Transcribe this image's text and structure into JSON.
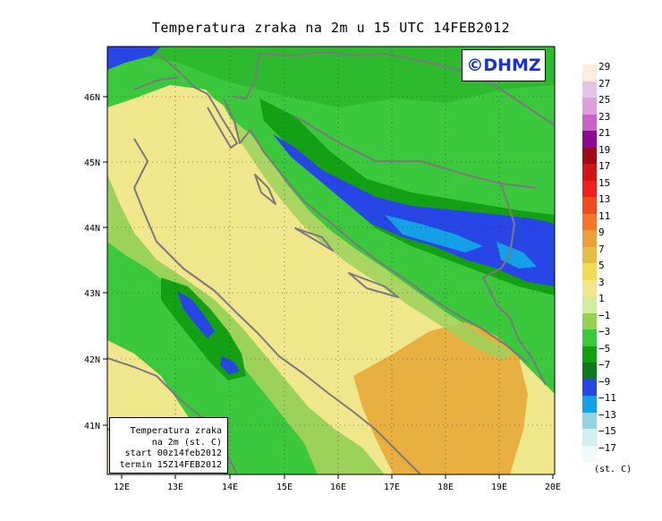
{
  "title": "Temperatura zraka na 2m u 15 UTC 14FEB2012",
  "watermark": "©DHMZ",
  "info_box": {
    "line1": "Temperatura zraka",
    "line2": "na 2m (st. C)",
    "line3": "start 00z14feb2012",
    "line4": "termin 15Z14FEB2012"
  },
  "axes": {
    "x_ticks": [
      "12E",
      "13E",
      "14E",
      "15E",
      "16E",
      "17E",
      "18E",
      "19E",
      "20E"
    ],
    "y_ticks": [
      "46N",
      "45N",
      "44N",
      "43N",
      "42N",
      "41N"
    ]
  },
  "legend": {
    "units": "(st. C)",
    "labels": [
      "29",
      "27",
      "25",
      "23",
      "21",
      "19",
      "17",
      "15",
      "13",
      "11",
      "9",
      "7",
      "5",
      "3",
      "1",
      "−1",
      "−3",
      "−5",
      "−7",
      "−9",
      "−11",
      "−13",
      "−15",
      "−17"
    ],
    "colors": [
      "#fbeee0",
      "#e6c4e6",
      "#dca0dc",
      "#c864c8",
      "#8c0a8c",
      "#a00a14",
      "#d21414",
      "#f01e1e",
      "#f04b1e",
      "#f07828",
      "#e8a037",
      "#e6be46",
      "#f0dc55",
      "#f0e68c",
      "#d2eba0",
      "#96d250",
      "#3cc83c",
      "#14a014",
      "#0f781e",
      "#2846e6",
      "#14a0e6",
      "#96d2e6",
      "#d2f0f0",
      "#f0fafa"
    ]
  },
  "map_colors": {
    "sea": "#f0e68c",
    "sea_south": "#e8b040",
    "land_light": "#9cd25a",
    "land_green": "#3cc83c",
    "land_dark": "#14a014",
    "cold_blue": "#2846e6",
    "cold_cyan": "#14a0e6",
    "border": "#7a7a7a"
  }
}
